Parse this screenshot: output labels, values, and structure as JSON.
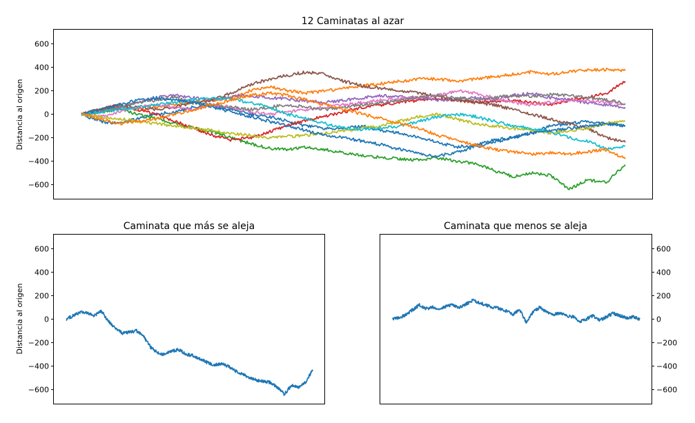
{
  "chart_data": [
    {
      "type": "line",
      "title": "12 Caminatas al azar",
      "xlabel": "",
      "ylabel": "Distancia al origen",
      "ylim": [
        -720,
        720
      ],
      "yticks": [
        -600,
        -400,
        -200,
        0,
        200,
        400,
        600
      ],
      "x_ticks_visible": false,
      "grid": false,
      "steps": 10000,
      "series": [
        {
          "color": "#1f77b4",
          "values": [
            0,
            -60,
            -80,
            -40,
            0,
            20,
            60,
            80,
            40,
            0,
            -20,
            -60,
            -100,
            -120,
            -120,
            -100,
            -140,
            -160,
            -200,
            -240,
            -280,
            -260,
            -220,
            -200,
            -160,
            -100,
            -80,
            -60,
            -80,
            -100
          ]
        },
        {
          "color": "#ff7f0e",
          "values": [
            0,
            40,
            60,
            40,
            60,
            80,
            100,
            120,
            140,
            200,
            240,
            200,
            180,
            200,
            220,
            240,
            260,
            280,
            300,
            300,
            280,
            300,
            320,
            340,
            360,
            340,
            360,
            380,
            380,
            370
          ]
        },
        {
          "color": "#2ca02c",
          "values": [
            0,
            20,
            40,
            0,
            -40,
            -80,
            -120,
            -150,
            -200,
            -250,
            -290,
            -300,
            -280,
            -300,
            -330,
            -350,
            -370,
            -380,
            -390,
            -370,
            -400,
            -420,
            -480,
            -530,
            -500,
            -520,
            -640,
            -560,
            -580,
            -430
          ]
        },
        {
          "color": "#d62728",
          "values": [
            0,
            40,
            80,
            40,
            0,
            -60,
            -120,
            -180,
            -220,
            -200,
            -150,
            -100,
            -50,
            -20,
            20,
            60,
            80,
            100,
            120,
            130,
            120,
            100,
            110,
            120,
            100,
            80,
            120,
            140,
            180,
            280
          ]
        },
        {
          "color": "#9467bd",
          "values": [
            0,
            20,
            60,
            100,
            140,
            160,
            140,
            120,
            150,
            160,
            140,
            130,
            110,
            100,
            120,
            140,
            160,
            150,
            140,
            120,
            130,
            140,
            120,
            160,
            180,
            140,
            120,
            100,
            80,
            60
          ]
        },
        {
          "color": "#8c564b",
          "values": [
            0,
            40,
            80,
            60,
            40,
            60,
            100,
            120,
            180,
            250,
            300,
            330,
            360,
            340,
            280,
            240,
            220,
            200,
            180,
            150,
            120,
            100,
            80,
            40,
            0,
            -40,
            -80,
            -120,
            -200,
            -240
          ]
        },
        {
          "color": "#e377c2",
          "values": [
            0,
            -20,
            20,
            60,
            80,
            60,
            40,
            80,
            60,
            20,
            0,
            20,
            40,
            60,
            80,
            100,
            120,
            130,
            140,
            160,
            200,
            180,
            140,
            100,
            80,
            100,
            120,
            110,
            100,
            90
          ]
        },
        {
          "color": "#7f7f7f",
          "values": [
            0,
            20,
            60,
            100,
            120,
            140,
            100,
            80,
            60,
            40,
            60,
            80,
            60,
            40,
            60,
            80,
            100,
            120,
            140,
            160,
            140,
            120,
            140,
            160,
            150,
            170,
            160,
            140,
            120,
            90
          ]
        },
        {
          "color": "#bcbd22",
          "values": [
            0,
            -20,
            -40,
            -60,
            -80,
            -100,
            -120,
            -140,
            -160,
            -180,
            -200,
            -190,
            -180,
            -160,
            -140,
            -120,
            -100,
            -60,
            -20,
            0,
            -40,
            -80,
            -100,
            -120,
            -140,
            -160,
            -140,
            -120,
            -80,
            -60
          ]
        },
        {
          "color": "#17becf",
          "values": [
            0,
            20,
            40,
            60,
            80,
            100,
            120,
            140,
            130,
            100,
            60,
            0,
            -40,
            -80,
            -120,
            -130,
            -120,
            -100,
            -60,
            -20,
            0,
            -20,
            -60,
            -100,
            -120,
            -150,
            -200,
            -230,
            -300,
            -270
          ]
        },
        {
          "color": "#1f77b4",
          "values": [
            0,
            40,
            80,
            120,
            140,
            120,
            100,
            60,
            20,
            -20,
            -60,
            -100,
            -140,
            -180,
            -200,
            -230,
            -260,
            -300,
            -340,
            -360,
            -320,
            -280,
            -240,
            -200,
            -160,
            -140,
            -120,
            -100,
            -80,
            -100
          ]
        },
        {
          "color": "#ff7f0e",
          "values": [
            0,
            -40,
            -80,
            -60,
            -40,
            0,
            40,
            80,
            120,
            160,
            180,
            160,
            120,
            80,
            40,
            0,
            -40,
            -80,
            -120,
            -180,
            -220,
            -260,
            -300,
            -320,
            -340,
            -330,
            -340,
            -320,
            -300,
            -380
          ]
        }
      ]
    },
    {
      "type": "line",
      "title": "Caminata que más se aleja",
      "xlabel": "",
      "ylabel": "Distancia al origen",
      "ylim": [
        -720,
        720
      ],
      "yticks": [
        -600,
        -400,
        -200,
        0,
        200,
        400,
        600
      ],
      "x_ticks_visible": false,
      "grid": false,
      "steps": 10000,
      "series": [
        {
          "color": "#1f77b4",
          "values": [
            0,
            30,
            60,
            50,
            30,
            70,
            -20,
            -80,
            -120,
            -110,
            -100,
            -150,
            -240,
            -290,
            -300,
            -270,
            -260,
            -300,
            -310,
            -340,
            -370,
            -390,
            -380,
            -400,
            -440,
            -470,
            -500,
            -520,
            -530,
            -540,
            -580,
            -640,
            -560,
            -580,
            -540,
            -430
          ]
        }
      ]
    },
    {
      "type": "line",
      "title": "Caminata que menos se aleja",
      "xlabel": "",
      "ylabel": "",
      "ylim": [
        -720,
        720
      ],
      "yticks": [
        -600,
        -400,
        -200,
        0,
        200,
        400,
        600
      ],
      "y_axis_side": "right",
      "x_ticks_visible": false,
      "grid": false,
      "steps": 10000,
      "series": [
        {
          "color": "#1f77b4",
          "values": [
            0,
            10,
            40,
            80,
            120,
            90,
            100,
            80,
            110,
            120,
            100,
            130,
            160,
            140,
            120,
            100,
            90,
            70,
            40,
            80,
            -30,
            60,
            100,
            60,
            40,
            50,
            30,
            20,
            -20,
            0,
            30,
            -10,
            20,
            50,
            30,
            10,
            20,
            0
          ]
        }
      ]
    }
  ]
}
